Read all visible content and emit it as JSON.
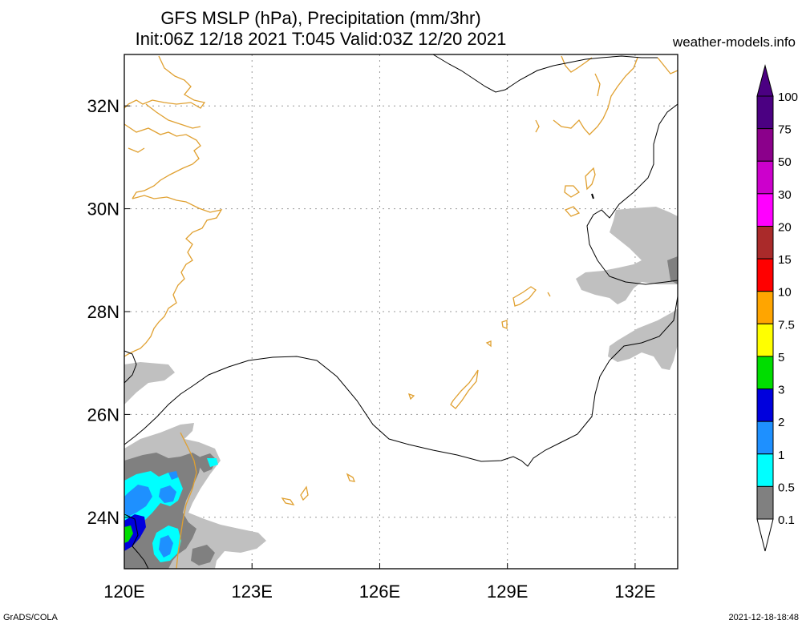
{
  "header": {
    "title_line1": "GFS MSLP (hPa), Precipitation (mm/3hr)",
    "title_line2": "Init:06Z 12/18 2021 T:045 Valid:03Z 12/20 2021",
    "site": "weather-models.info"
  },
  "map": {
    "lon_labels": [
      "120E",
      "123E",
      "126E",
      "129E",
      "132E"
    ],
    "lat_labels": [
      "32N",
      "30N",
      "28N",
      "26N",
      "24N"
    ],
    "lon_range": [
      120,
      133
    ],
    "lat_range": [
      23,
      33
    ]
  },
  "legend": {
    "items": [
      {
        "label": "100",
        "color": "#4b0082"
      },
      {
        "label": "75",
        "color": "#8b008b"
      },
      {
        "label": "50",
        "color": "#cc00cc"
      },
      {
        "label": "30",
        "color": "#ff00ff"
      },
      {
        "label": "20",
        "color": "#aa2a2a"
      },
      {
        "label": "15",
        "color": "#ff0000"
      },
      {
        "label": "10",
        "color": "#ffa500"
      },
      {
        "label": "7.5",
        "color": "#ffff00"
      },
      {
        "label": "5",
        "color": "#00dd00"
      },
      {
        "label": "3",
        "color": "#0000dd"
      },
      {
        "label": "2",
        "color": "#1e90ff"
      },
      {
        "label": "1",
        "color": "#00ffff"
      },
      {
        "label": "0.5",
        "color": "#808080"
      },
      {
        "label": "0.1",
        "color": "#c0c0c0"
      }
    ]
  },
  "footer": {
    "left": "GrADS/COLA",
    "right": "2021-12-18-18:48"
  }
}
